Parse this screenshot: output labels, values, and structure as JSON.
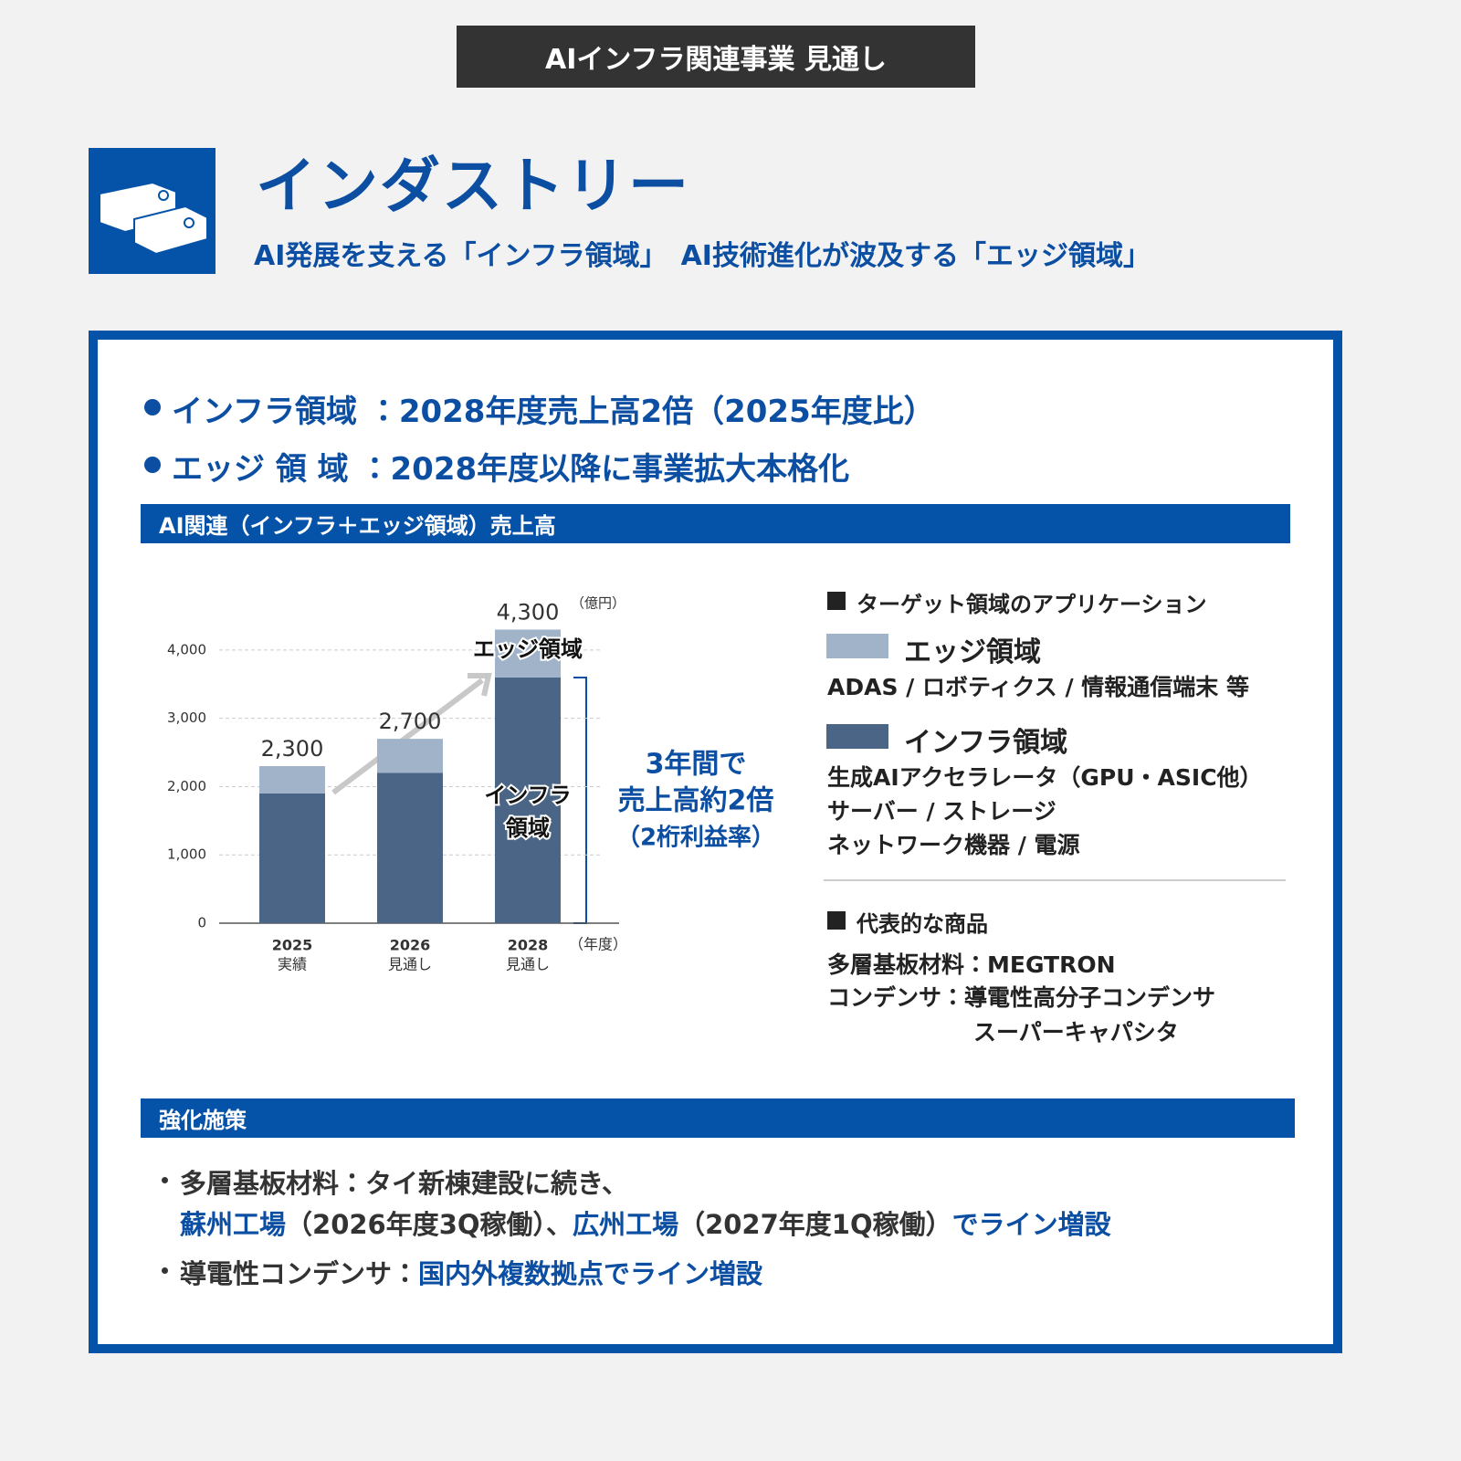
{
  "header": {
    "badge": "AIインフラ関連事業 見通し",
    "title": "インダストリー",
    "subtitle": "AI発展を支える「インフラ領域」　AI技術進化が波及する「エッジ領域」"
  },
  "highlights": [
    "インフラ領域 ：2028年度売上高2倍（2025年度比）",
    "エッジ 領 域 ：2028年度以降に事業拡大本格化"
  ],
  "chart_section_title": "AI関連（インフラ＋エッジ領域）売上高",
  "chart_data": {
    "type": "stacked_bar",
    "categories": [
      "2025",
      "2026",
      "2028"
    ],
    "category_sublabels": [
      "実績",
      "見通し",
      "見通し"
    ],
    "series": [
      {
        "name": "インフラ領域",
        "color": "#4a6585",
        "values": [
          1900,
          2200,
          3600
        ]
      },
      {
        "name": "エッジ領域",
        "color": "#a0b3c9",
        "values": [
          400,
          500,
          700
        ]
      }
    ],
    "totals": [
      2300,
      2700,
      4300
    ],
    "total_labels": [
      "2,300",
      "2,700",
      "4,300"
    ],
    "y_unit": "（億円）",
    "x_unit": "（年度）",
    "ylim": [
      0,
      4400
    ],
    "yticks": [
      0,
      {
        "value": 1000,
        "label": "1,000"
      },
      {
        "value": 2000,
        "label": "2,000"
      },
      {
        "value": 3000,
        "label": "3,000"
      },
      {
        "value": 4000,
        "label": "4,000"
      }
    ],
    "grid": true,
    "annotations": [
      "インフラ",
      "領域"
    ],
    "callout": [
      "3年間で",
      "売上高約2倍",
      "（2桁利益率）"
    ]
  },
  "applications": {
    "heading": "ターゲット領域のアプリケーション",
    "edge_items": [
      "ADAS / ロボティクス / 情報通信端末 等"
    ],
    "infra_items": [
      "生成AIアクセラレータ（GPU・ASIC他）",
      "サーバー / ストレージ",
      "ネットワーク機器 / 電源"
    ]
  },
  "products": {
    "heading": "代表的な商品",
    "items": [
      "多層基板材料：MEGTRON",
      "コンデンサ：導電性高分子コンデンサ",
      "スーパーキャパシタ"
    ]
  },
  "measures": {
    "heading": "強化施策",
    "items": [
      [
        {
          "text": "多層基板材料：タイ新棟建設に続き、",
          "highlight": false
        }
      ],
      [
        {
          "text": "蘇州工場",
          "highlight": true
        },
        {
          "text": "（2026年度3Q稼働）、",
          "highlight": false
        },
        {
          "text": "広州工場",
          "highlight": true
        },
        {
          "text": "（2027年度1Q稼働）",
          "highlight": false
        },
        {
          "text": "でライン増設",
          "highlight": true
        }
      ],
      [
        {
          "text": "導電性コンデンサ：",
          "highlight": false
        },
        {
          "text": "国内外複数拠点でライン増設",
          "highlight": true
        }
      ]
    ]
  }
}
